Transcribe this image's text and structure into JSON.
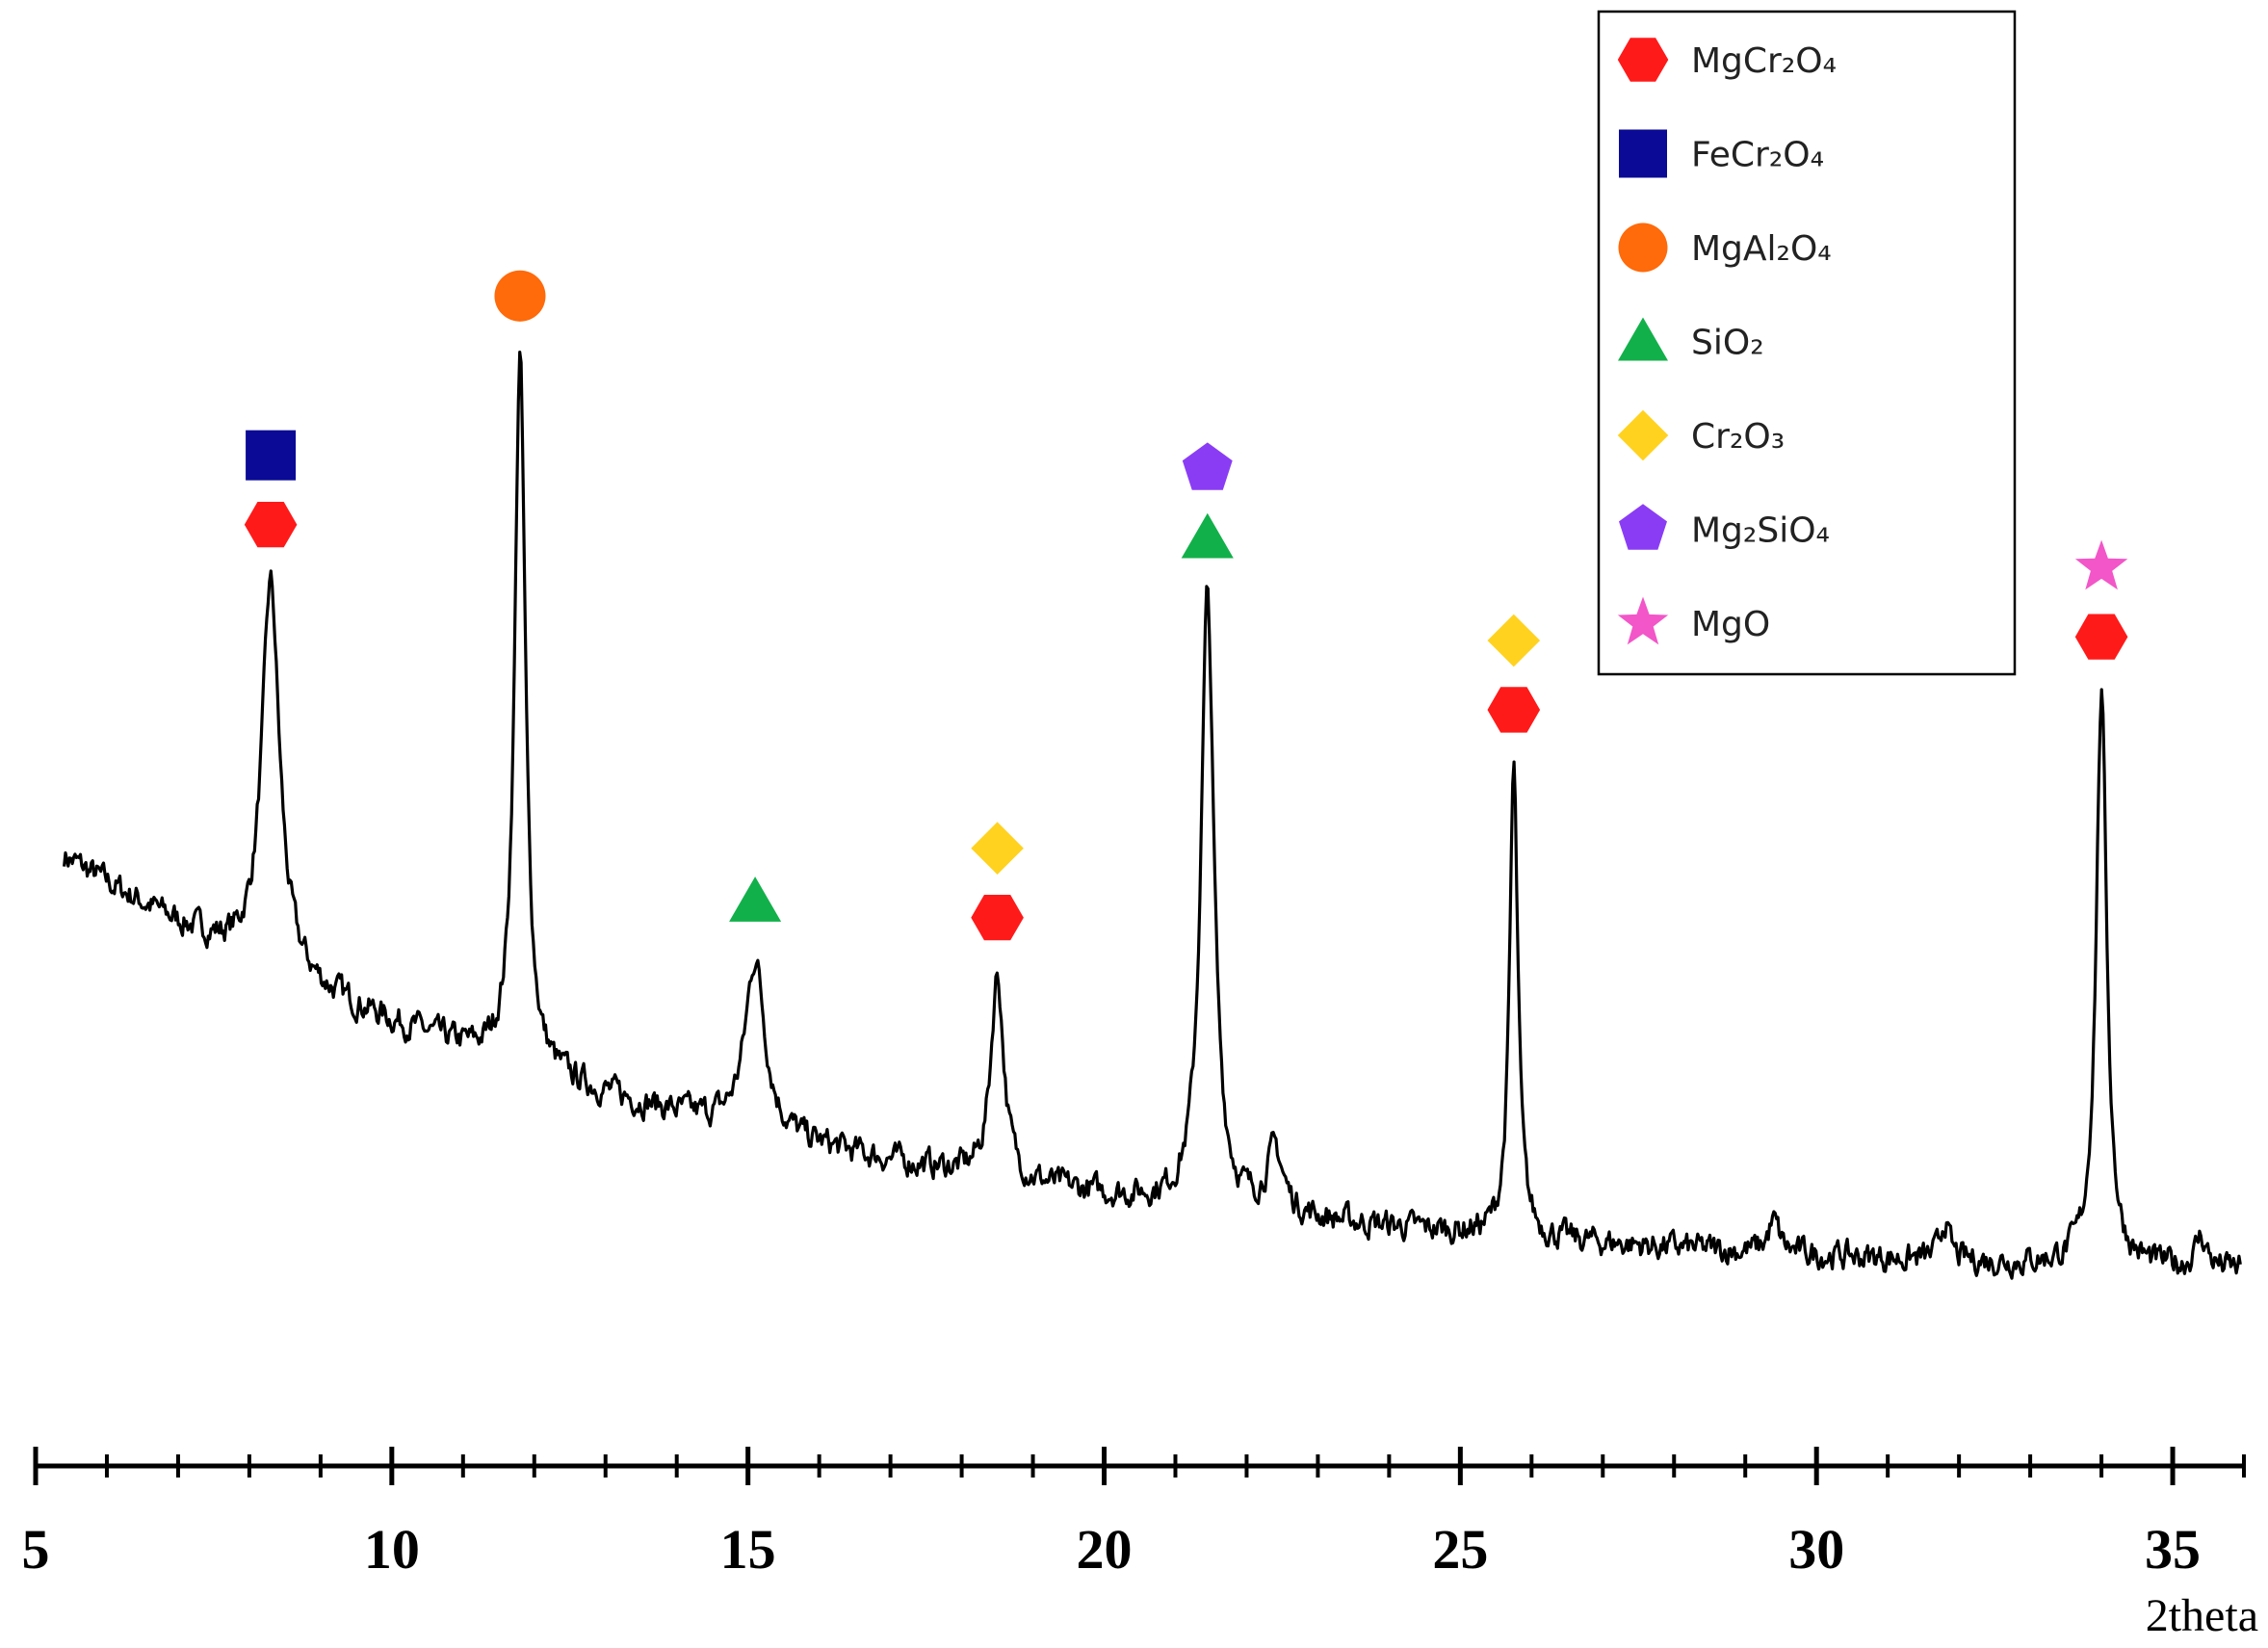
{
  "chart_data": {
    "type": "line",
    "title": "",
    "xlabel": "2theta",
    "ylabel": "",
    "xlim": [
      5,
      36
    ],
    "ylim": [
      0,
      100
    ],
    "grid": false,
    "x_ticks": [
      "5",
      "10",
      "15",
      "20",
      "25",
      "30",
      "35"
    ],
    "legend": {
      "placement": "top-right",
      "entries": [
        {
          "key": "mgcr2o4",
          "label": "MgCr₂O₄",
          "marker": "hexagon",
          "color": "#ff1a1a"
        },
        {
          "key": "fecr2o4",
          "label": "FeCr₂O₄",
          "marker": "square",
          "color": "#0a0a96"
        },
        {
          "key": "mgal2o4",
          "label": "MgAl₂O₄",
          "marker": "circle",
          "color": "#ff6a0a"
        },
        {
          "key": "sio2",
          "label": "SiO₂",
          "marker": "triangle",
          "color": "#12b04a"
        },
        {
          "key": "cr2o3",
          "label": "Cr₂O₃",
          "marker": "diamond",
          "color": "#ffd21f"
        },
        {
          "key": "mg2sio4",
          "label": "Mg₂SiO₄",
          "marker": "pentagon",
          "color": "#8a3cf5"
        },
        {
          "key": "mgo",
          "label": "MgO",
          "marker": "star",
          "color": "#f256c8"
        }
      ]
    },
    "series": [
      {
        "color": "#000000",
        "background": {
          "start": 50,
          "end": 6
        },
        "peaks": [
          {
            "x": 8.3,
            "height": 38,
            "width": 0.15
          },
          {
            "x": 11.8,
            "height": 70,
            "width": 0.09
          },
          {
            "x": 15.1,
            "height": 17,
            "width": 0.17
          },
          {
            "x": 18.5,
            "height": 20,
            "width": 0.11
          },
          {
            "x": 21.45,
            "height": 60,
            "width": 0.11
          },
          {
            "x": 22.4,
            "height": 6,
            "width": 0.14
          },
          {
            "x": 25.75,
            "height": 46,
            "width": 0.07
          },
          {
            "x": 29.4,
            "height": 3,
            "width": 0.1
          },
          {
            "x": 31.8,
            "height": 4,
            "width": 0.07
          },
          {
            "x": 34.0,
            "height": 56,
            "width": 0.09
          },
          {
            "x": 35.4,
            "height": 3,
            "width": 0.1
          }
        ]
      }
    ],
    "annotations": [
      {
        "x": 8.3,
        "phases": [
          "mgcr2o4",
          "fecr2o4"
        ]
      },
      {
        "x": 11.8,
        "phases": [
          "mgal2o4"
        ]
      },
      {
        "x": 15.1,
        "phases": [
          "sio2"
        ]
      },
      {
        "x": 18.5,
        "phases": [
          "mgcr2o4",
          "cr2o3"
        ]
      },
      {
        "x": 21.45,
        "phases": [
          "sio2",
          "mg2sio4"
        ]
      },
      {
        "x": 25.75,
        "phases": [
          "mgcr2o4",
          "cr2o3"
        ]
      },
      {
        "x": 34.0,
        "phases": [
          "mgcr2o4",
          "mgo"
        ]
      }
    ]
  }
}
